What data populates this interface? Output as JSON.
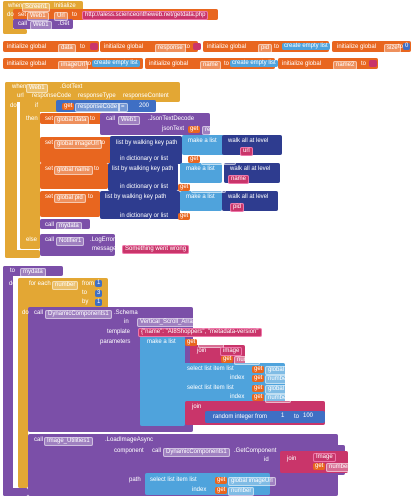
{
  "screen_initialize": [
    "when",
    "Screen1",
    "Initialize",
    "do",
    "set",
    "Web1",
    "Url",
    "to",
    "http://aless.scienceontheweb.net/getdata.php",
    "call",
    "Web1",
    ".Get"
  ],
  "globals": [
    "initialize global",
    "data",
    "to",
    "initialize global",
    "response",
    "to",
    "initialize global",
    "pid",
    "to",
    "create empty list",
    "initialize global",
    "size",
    "to",
    "0",
    "initialize global",
    "imageUrl",
    "to",
    "create empty list",
    "initialize global",
    "name",
    "to",
    "create empty list",
    "initialize global",
    "name2",
    "to"
  ],
  "got_text": [
    "when",
    "Web1",
    ".GotText",
    "url",
    "responseCode",
    "responseType",
    "responseContent",
    "do",
    "if",
    "get",
    "responseCode",
    "=",
    "200",
    "then",
    "set",
    "global data",
    "to",
    "call",
    "Web1",
    ".JsonTextDecode",
    "jsonText",
    "get",
    "responseContent",
    "set",
    "global imageUrl",
    "to",
    "list by walking key path",
    "make a list",
    "walk all at level",
    "url",
    "in dictionary or list",
    "get",
    "global data",
    "set",
    "global name",
    "to",
    "list by walking key path",
    "make a list",
    "walk all at level",
    "name",
    "in dictionary or list",
    "get",
    "global data",
    "set",
    "global pid",
    "to",
    "list by walking key path",
    "make a list",
    "walk all at level",
    "pid",
    "in dictionary or list",
    "get",
    "global data",
    "call",
    "mydata",
    "else",
    "call",
    "Notifier1",
    ".LogError",
    "message",
    "Something went wrong"
  ],
  "mydata_procedure": [
    "to",
    "mydata",
    "do",
    "for each",
    "number",
    "from",
    "1",
    "to",
    "3",
    "by",
    "1",
    "do",
    "call",
    "DynamicComponents1",
    ".Schema",
    "in",
    "Vertical_Scroll_Arrangement2",
    "template",
    "{\"name\": \"AI8Shoppers\", \"metadata-version\"",
    "parameters",
    "make a list",
    "get",
    "number",
    "join",
    "image",
    "get",
    "number",
    "select list item list",
    "get",
    "global name",
    "index",
    "get",
    "number",
    "select list item list",
    "get",
    "global pid",
    "index",
    "get",
    "number",
    "join",
    "random integer from",
    "1",
    "to",
    "100",
    "call",
    "Image_Utilities1",
    ".LoadImageAsync",
    "component",
    "call",
    "DynamicComponents1",
    ".GetComponent",
    "id",
    "join",
    "Image",
    "get",
    "number",
    "path",
    "select list item list",
    "get",
    "global imageUrl",
    "index",
    "get",
    "number"
  ]
}
